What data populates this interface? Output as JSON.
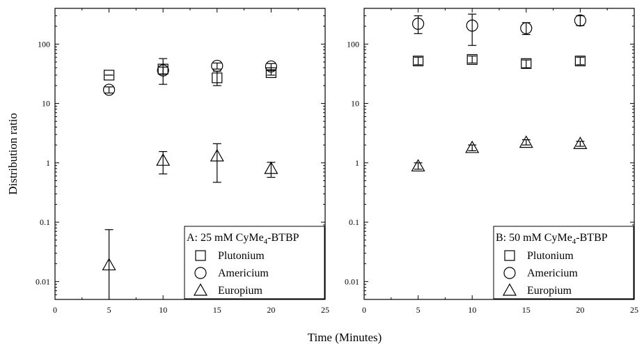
{
  "chart_data": [
    {
      "type": "scatter",
      "panel": "A",
      "legend_title": "A: 25 mM CyMe",
      "legend_title_sub": "4",
      "legend_title_suffix": "-BTBP",
      "legend_position": "bottom-right",
      "xlabel": "Time (Minutes)",
      "ylabel": "Distribution ratio",
      "xlim": [
        0,
        25
      ],
      "ylim": [
        0.005,
        400
      ],
      "yscale": "log",
      "x_ticks": [
        0,
        5,
        10,
        15,
        20,
        25
      ],
      "y_ticks": [
        0.01,
        0.1,
        1,
        10,
        100
      ],
      "y_tick_labels": [
        "0.01",
        "0.1",
        "1",
        "10",
        "100"
      ],
      "grid": false,
      "series": [
        {
          "name": "Plutonium",
          "marker": "square",
          "points": [
            {
              "x": 5,
              "y": 30,
              "err_low": 30,
              "err_high": 30
            },
            {
              "x": 10,
              "y": 38,
              "err_low": 21,
              "err_high": 57
            },
            {
              "x": 15,
              "y": 27,
              "err_low": 20,
              "err_high": 35
            },
            {
              "x": 20,
              "y": 33,
              "err_low": 30,
              "err_high": 36
            }
          ]
        },
        {
          "name": "Americium",
          "marker": "circle",
          "points": [
            {
              "x": 5,
              "y": 17,
              "err_low": 15,
              "err_high": 19
            },
            {
              "x": 10,
              "y": 36,
              "err_low": 31,
              "err_high": 41
            },
            {
              "x": 15,
              "y": 43,
              "err_low": 38,
              "err_high": 48
            },
            {
              "x": 20,
              "y": 42,
              "err_low": 37,
              "err_high": 47
            }
          ]
        },
        {
          "name": "Europium",
          "marker": "triangle",
          "points": [
            {
              "x": 5,
              "y": 0.019,
              "err_low": 0.001,
              "err_high": 0.075
            },
            {
              "x": 10,
              "y": 1.1,
              "err_low": 0.65,
              "err_high": 1.55
            },
            {
              "x": 15,
              "y": 1.3,
              "err_low": 0.47,
              "err_high": 2.1
            },
            {
              "x": 20,
              "y": 0.8,
              "err_low": 0.57,
              "err_high": 1.02
            }
          ]
        }
      ]
    },
    {
      "type": "scatter",
      "panel": "B",
      "legend_title": "B: 50 mM CyMe",
      "legend_title_sub": "4",
      "legend_title_suffix": "-BTBP",
      "legend_position": "bottom-right",
      "xlabel": "Time (Minutes)",
      "ylabel": "",
      "xlim": [
        0,
        25
      ],
      "ylim": [
        0.005,
        400
      ],
      "yscale": "log",
      "x_ticks": [
        0,
        5,
        10,
        15,
        20,
        25
      ],
      "y_ticks": [
        0.01,
        0.1,
        1,
        10,
        100
      ],
      "y_tick_labels": [
        "0.01",
        "0.1",
        "1",
        "10",
        "100"
      ],
      "grid": false,
      "series": [
        {
          "name": "Plutonium",
          "marker": "square",
          "points": [
            {
              "x": 5,
              "y": 52,
              "err_low": 45,
              "err_high": 60
            },
            {
              "x": 10,
              "y": 55,
              "err_low": 48,
              "err_high": 63
            },
            {
              "x": 15,
              "y": 47,
              "err_low": 40,
              "err_high": 54
            },
            {
              "x": 20,
              "y": 52,
              "err_low": 45,
              "err_high": 60
            }
          ]
        },
        {
          "name": "Americium",
          "marker": "circle",
          "points": [
            {
              "x": 5,
              "y": 220,
              "err_low": 150,
              "err_high": 300
            },
            {
              "x": 10,
              "y": 205,
              "err_low": 95,
              "err_high": 320
            },
            {
              "x": 15,
              "y": 185,
              "err_low": 145,
              "err_high": 230
            },
            {
              "x": 20,
              "y": 250,
              "err_low": 205,
              "err_high": 300
            }
          ]
        },
        {
          "name": "Europium",
          "marker": "triangle",
          "points": [
            {
              "x": 5,
              "y": 0.88,
              "err_low": 0.78,
              "err_high": 1.0
            },
            {
              "x": 10,
              "y": 1.8,
              "err_low": 1.6,
              "err_high": 2.0
            },
            {
              "x": 15,
              "y": 2.2,
              "err_low": 2.0,
              "err_high": 2.45
            },
            {
              "x": 20,
              "y": 2.1,
              "err_low": 1.9,
              "err_high": 2.3
            }
          ]
        }
      ]
    }
  ],
  "shared_xlabel": "Time (Minutes)"
}
